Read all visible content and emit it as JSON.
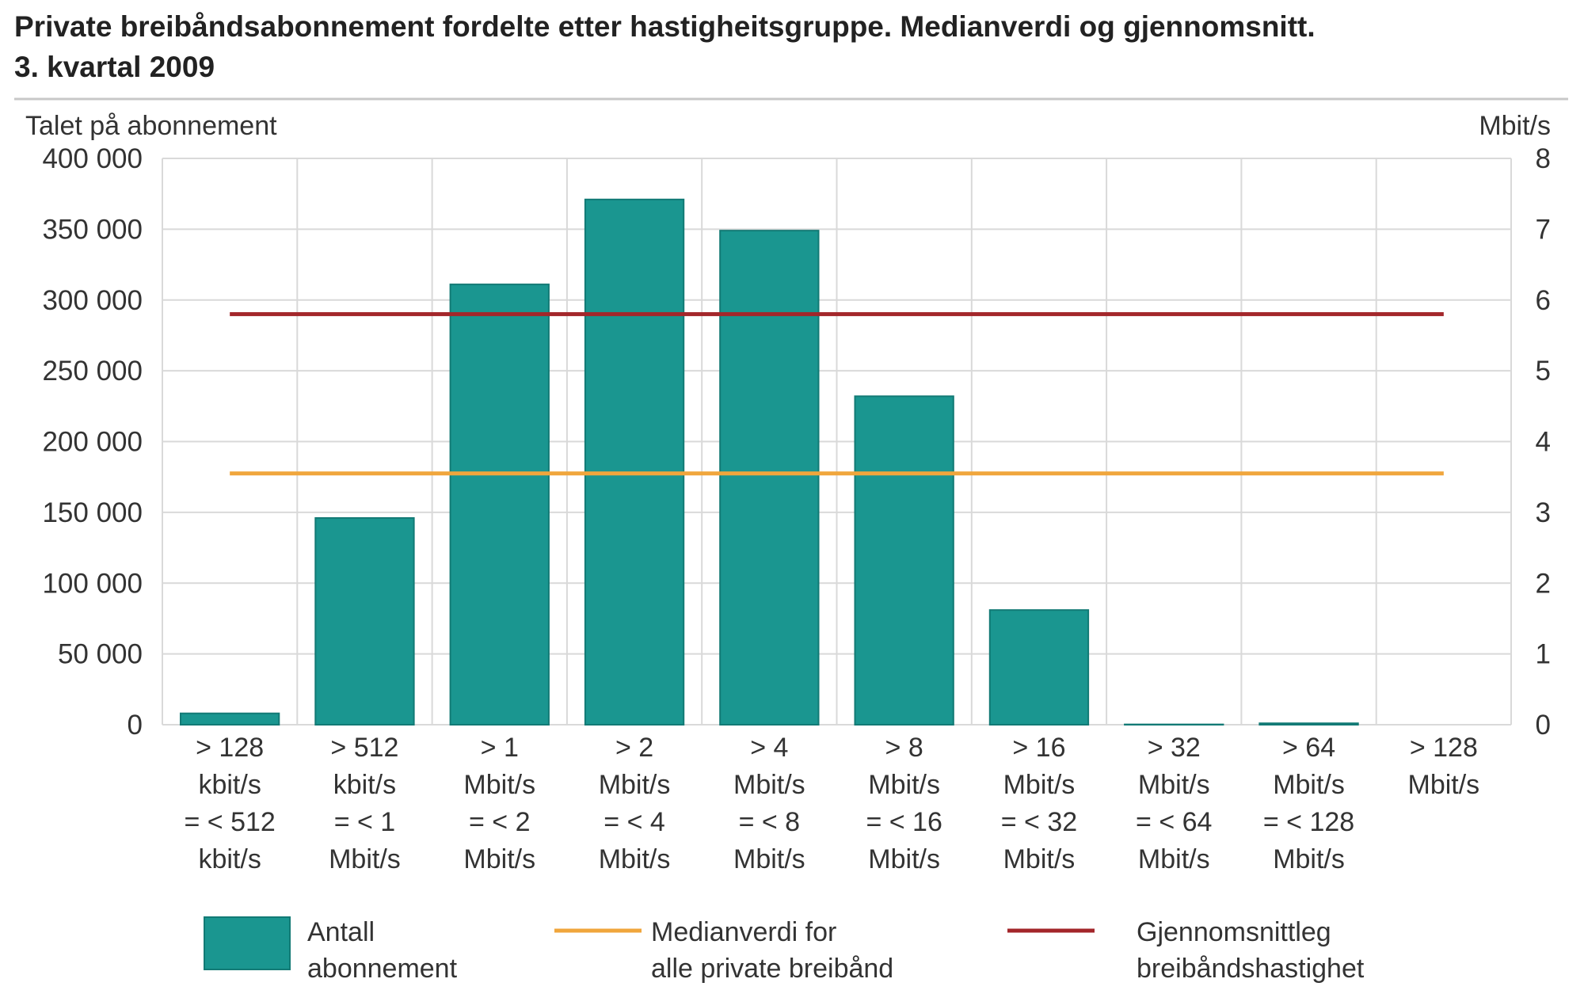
{
  "chart_data": {
    "type": "bar",
    "title_lines": [
      "Private breibåndsabonnement fordelte etter hastigheitsgruppe. Medianverdi og gjennomsnitt.",
      "3. kvartal 2009"
    ],
    "ylabel": "Talet på abonnement",
    "y2label": "Mbit/s",
    "ylim": [
      0,
      400000
    ],
    "y2lim": [
      0,
      8
    ],
    "y_ticks": [
      {
        "value": 0,
        "label": "0"
      },
      {
        "value": 50000,
        "label": "50 000"
      },
      {
        "value": 100000,
        "label": "100 000"
      },
      {
        "value": 150000,
        "label": "150 000"
      },
      {
        "value": 200000,
        "label": "200 000"
      },
      {
        "value": 250000,
        "label": "250 000"
      },
      {
        "value": 300000,
        "label": "300 000"
      },
      {
        "value": 350000,
        "label": "350 000"
      },
      {
        "value": 400000,
        "label": "400 000"
      }
    ],
    "y2_ticks": [
      {
        "value": 0,
        "label": "0"
      },
      {
        "value": 1,
        "label": "1"
      },
      {
        "value": 2,
        "label": "2"
      },
      {
        "value": 3,
        "label": "3"
      },
      {
        "value": 4,
        "label": "4"
      },
      {
        "value": 5,
        "label": "5"
      },
      {
        "value": 6,
        "label": "6"
      },
      {
        "value": 7,
        "label": "7"
      },
      {
        "value": 8,
        "label": "8"
      }
    ],
    "categories": [
      [
        "> 128",
        "kbit/s",
        "= < 512",
        "kbit/s"
      ],
      [
        "> 512",
        "kbit/s",
        "= < 1",
        "Mbit/s"
      ],
      [
        "> 1",
        "Mbit/s",
        "= < 2",
        "Mbit/s"
      ],
      [
        "> 2",
        "Mbit/s",
        "= < 4",
        "Mbit/s"
      ],
      [
        "> 4",
        "Mbit/s",
        "= < 8",
        "Mbit/s"
      ],
      [
        "> 8",
        "Mbit/s",
        "= < 16",
        "Mbit/s"
      ],
      [
        "> 16",
        "Mbit/s",
        "= < 32",
        "Mbit/s"
      ],
      [
        "> 32",
        "Mbit/s",
        "= < 64",
        "Mbit/s"
      ],
      [
        "> 64",
        "Mbit/s",
        "= < 128",
        "Mbit/s"
      ],
      [
        "> 128",
        "Mbit/s"
      ]
    ],
    "series": [
      {
        "name": "Antall abonnement",
        "legend_lines": [
          "Antall",
          "abonnement"
        ],
        "type": "bar",
        "axis": "left",
        "color": "#1a9690",
        "values": [
          8000,
          146000,
          311000,
          371000,
          349000,
          232000,
          81000,
          200,
          1000,
          0
        ]
      },
      {
        "name": "Medianverdi for alle private breibånd",
        "legend_lines": [
          "Medianverdi for",
          "alle private breibånd"
        ],
        "type": "line",
        "axis": "right",
        "color": "#f0a63c",
        "value": 3.55
      },
      {
        "name": "Gjennomsnittleg breibåndshastighet",
        "legend_lines": [
          "Gjennomsnittleg",
          "breibåndshastighet"
        ],
        "type": "line",
        "axis": "right",
        "color": "#a3262a",
        "value": 5.8
      }
    ],
    "grid": true,
    "legend_position": "bottom"
  }
}
